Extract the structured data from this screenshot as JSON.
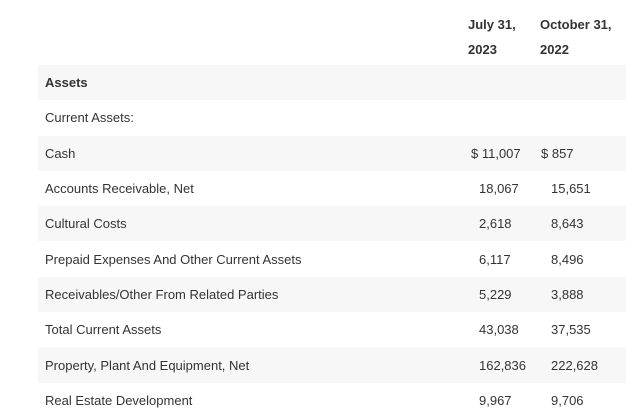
{
  "table": {
    "columns": [
      "July 31, 2023",
      "October 31, 2022"
    ],
    "rows": [
      [
        "Assets"
      ],
      [
        "Current Assets:"
      ],
      [
        "Cash",
        "$ 11,007",
        "$ 857"
      ],
      [
        "Accounts Receivable, Net",
        "18,067",
        "15,651"
      ],
      [
        "Cultural Costs",
        "2,618",
        "8,643"
      ],
      [
        "Prepaid Expenses And Other Current Assets",
        "6,117",
        "8,496"
      ],
      [
        "Receivables/Other From Related Parties",
        "5,229",
        "3,888"
      ],
      [
        "Total Current Assets",
        "43,038",
        "37,535"
      ],
      [
        "Property, Plant And Equipment, Net",
        "162,836",
        "222,628"
      ],
      [
        "Real Estate Development",
        "9,967",
        "9,706"
      ]
    ]
  }
}
